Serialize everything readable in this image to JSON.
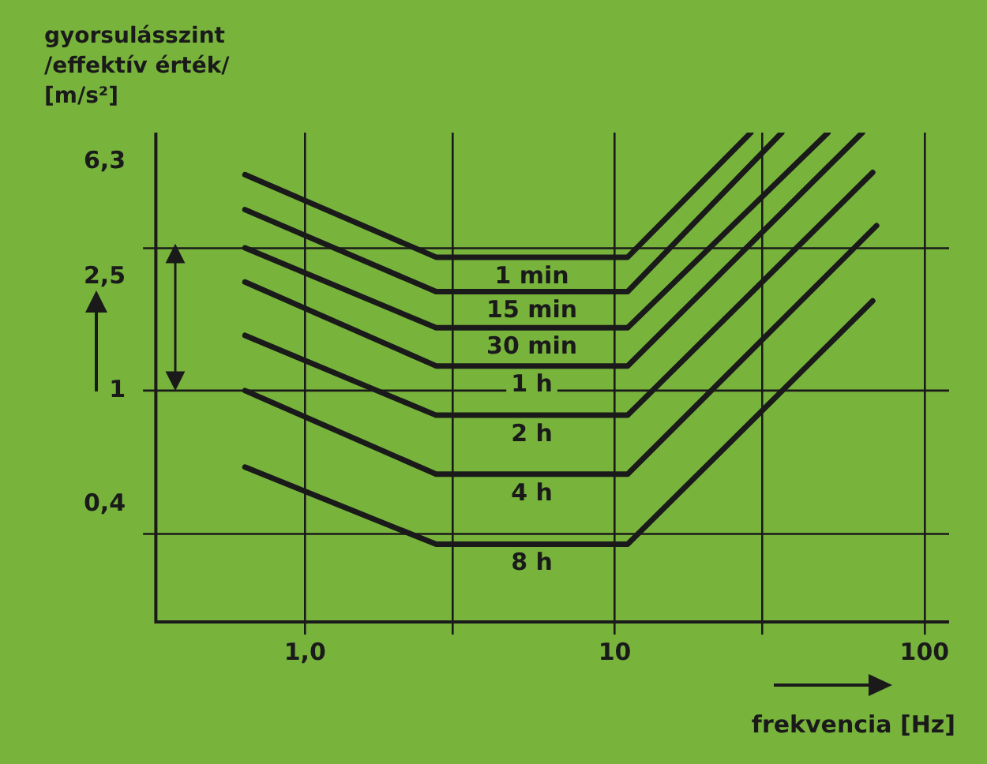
{
  "chart_data": {
    "type": "line",
    "ylabel": "gyorsulásszint\n/effektív érték/\n[m/s²]",
    "xlabel": "frekvencia [Hz]",
    "log": "xy",
    "xlim": [
      0.33,
      120
    ],
    "ylim": [
      0.155,
      8
    ],
    "xticks": [
      {
        "value": 1,
        "label": "1,0"
      },
      {
        "value": 3,
        "label": null
      },
      10,
      {
        "value": 30,
        "label": null
      },
      100
    ],
    "yticks": [
      {
        "value": 0.4,
        "label": "0,4"
      },
      1,
      {
        "value": 2.5,
        "label": "2,5"
      },
      {
        "value": 6.3,
        "label": "6,3"
      }
    ],
    "grid": "x",
    "marker": "none",
    "line_style": "solid",
    "legend": false,
    "ref_lines": [
      {
        "axis": "y",
        "value": 3.15,
        "color": "#1a1a1a"
      },
      {
        "axis": "y",
        "value": 1,
        "color": "#1a1a1a"
      },
      {
        "axis": "y",
        "value": 0.315,
        "color": "#1a1a1a"
      }
    ],
    "series": [
      {
        "name": "1 min",
        "color": "#1a1a1a",
        "x": [
          0.64,
          2.65,
          11,
          27.5
        ],
        "values": [
          5.7,
          2.93,
          2.93,
          8
        ]
      },
      {
        "name": "15 min",
        "color": "#1a1a1a",
        "x": [
          0.64,
          2.65,
          11,
          34.6
        ],
        "values": [
          4.3,
          2.22,
          2.22,
          8
        ]
      },
      {
        "name": "30 min",
        "color": "#1a1a1a",
        "x": [
          0.64,
          2.65,
          11,
          48.8
        ],
        "values": [
          3.16,
          1.66,
          1.66,
          8
        ]
      },
      {
        "name": "1 h",
        "color": "#1a1a1a",
        "x": [
          0.64,
          2.65,
          11,
          63
        ],
        "values": [
          2.4,
          1.22,
          1.22,
          8
        ]
      },
      {
        "name": "2 h",
        "color": "#1a1a1a",
        "x": [
          0.64,
          2.65,
          11,
          68
        ],
        "values": [
          1.56,
          0.82,
          0.82,
          5.8
        ]
      },
      {
        "name": "4 h",
        "color": "#1a1a1a",
        "x": [
          0.64,
          2.65,
          11,
          70
        ],
        "values": [
          1.0,
          0.51,
          0.51,
          3.78
        ]
      },
      {
        "name": "8 h",
        "color": "#1a1a1a",
        "x": [
          0.64,
          2.65,
          11,
          68
        ],
        "values": [
          0.54,
          0.29,
          0.29,
          2.06
        ]
      }
    ]
  }
}
